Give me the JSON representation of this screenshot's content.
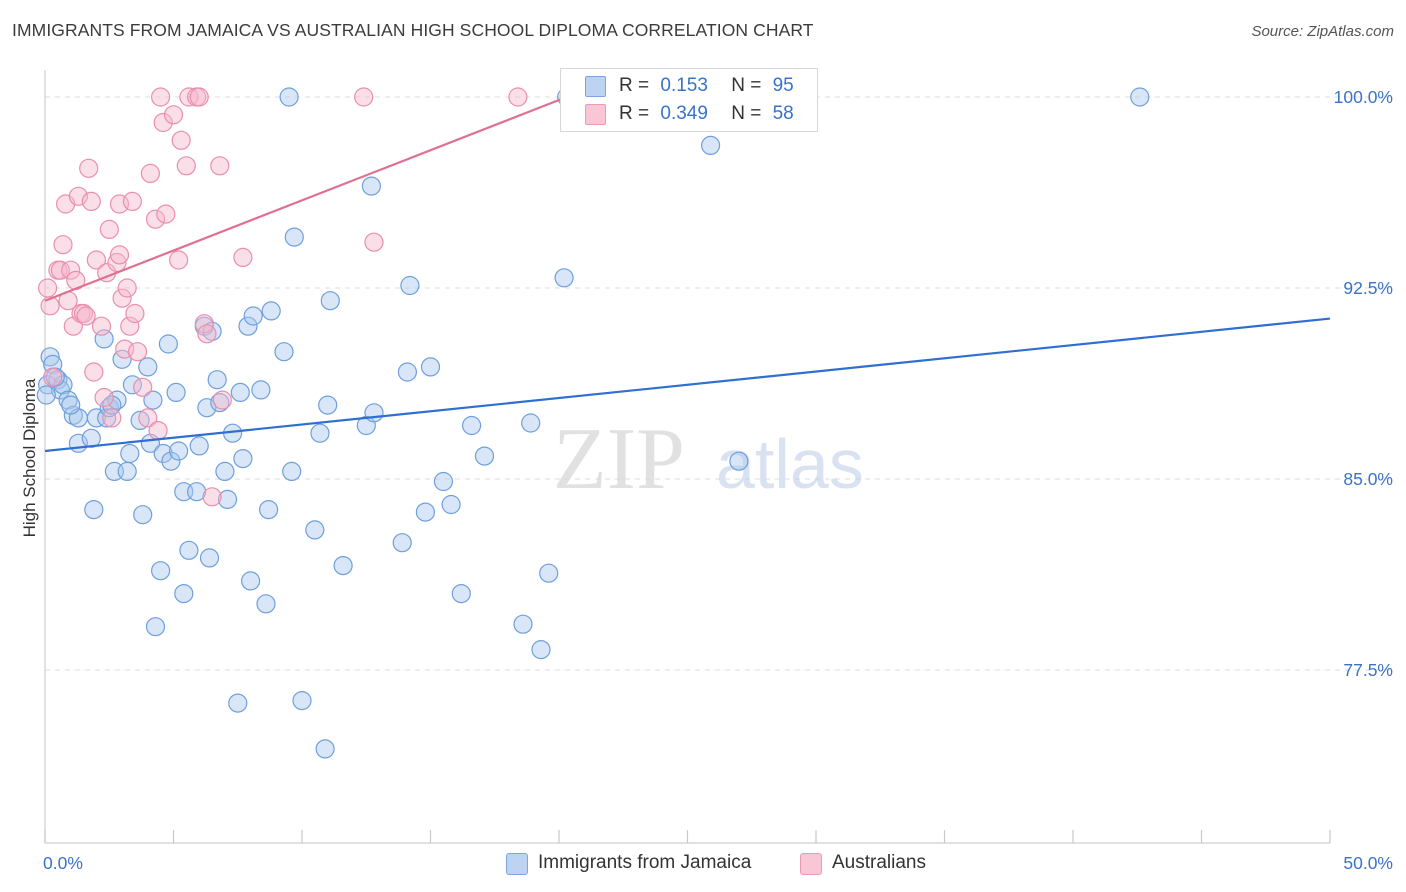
{
  "title": "IMMIGRANTS FROM JAMAICA VS AUSTRALIAN HIGH SCHOOL DIPLOMA CORRELATION CHART",
  "source": "Source: ZipAtlas.com",
  "watermark": {
    "zip": "ZIP",
    "atlas": "atlas"
  },
  "legend": {
    "rows": [
      {
        "r_label": "R =",
        "r_value": "0.153",
        "n_label": "N =",
        "n_value": "95"
      },
      {
        "r_label": "R =",
        "r_value": "0.349",
        "n_label": "N =",
        "n_value": "58"
      }
    ]
  },
  "colors": {
    "blue_fill": "#a9c7ee",
    "blue_stroke": "#6f9fdc",
    "blue_line": "#2f6fd1",
    "pink_fill": "#f7b8cb",
    "pink_stroke": "#ea8fab",
    "pink_line": "#e0708f",
    "tick_label": "#3a72c8"
  },
  "chart_data": {
    "type": "scatter",
    "title": "IMMIGRANTS FROM JAMAICA VS AUSTRALIAN HIGH SCHOOL DIPLOMA CORRELATION CHART",
    "xlabel": "",
    "ylabel": "High School Diploma",
    "xlim": [
      0,
      50
    ],
    "ylim": [
      70.5,
      101.5
    ],
    "x_tick_labels": [
      "0.0%",
      "50.0%"
    ],
    "y_ticks": [
      77.5,
      85.0,
      92.5,
      100.0
    ],
    "y_tick_labels": [
      "77.5%",
      "85.0%",
      "92.5%",
      "100.0%"
    ],
    "grid": "horizontal dashed",
    "legend_placement": "top-center and bottom",
    "series": [
      {
        "name": "Immigrants from Jamaica",
        "color": "#a9c7ee",
        "r": 0.153,
        "n": 95,
        "trend": [
          [
            0,
            86.1
          ],
          [
            50,
            91.3
          ]
        ],
        "points": [
          [
            0.1,
            88.7
          ],
          [
            0.2,
            89.8
          ],
          [
            0.3,
            89.5
          ],
          [
            0.5,
            88.9
          ],
          [
            0.6,
            88.5
          ],
          [
            0.7,
            88.7
          ],
          [
            0.9,
            88.1
          ],
          [
            1.1,
            87.5
          ],
          [
            1.3,
            87.4
          ],
          [
            1.3,
            86.4
          ],
          [
            1.8,
            86.6
          ],
          [
            1.9,
            83.8
          ],
          [
            2.0,
            87.4
          ],
          [
            2.3,
            90.5
          ],
          [
            2.4,
            87.4
          ],
          [
            2.5,
            87.8
          ],
          [
            2.7,
            85.3
          ],
          [
            2.8,
            88.1
          ],
          [
            3.0,
            89.7
          ],
          [
            3.2,
            85.3
          ],
          [
            3.3,
            86.0
          ],
          [
            3.4,
            88.7
          ],
          [
            3.7,
            87.3
          ],
          [
            3.8,
            83.6
          ],
          [
            4.0,
            89.4
          ],
          [
            4.1,
            86.4
          ],
          [
            4.2,
            88.1
          ],
          [
            4.3,
            79.2
          ],
          [
            4.5,
            81.4
          ],
          [
            4.6,
            86.0
          ],
          [
            4.8,
            90.3
          ],
          [
            4.9,
            85.7
          ],
          [
            5.1,
            88.4
          ],
          [
            5.2,
            86.1
          ],
          [
            5.4,
            84.5
          ],
          [
            5.4,
            80.5
          ],
          [
            5.6,
            82.2
          ],
          [
            5.9,
            84.5
          ],
          [
            6.0,
            86.3
          ],
          [
            6.2,
            91.0
          ],
          [
            6.3,
            87.8
          ],
          [
            6.4,
            81.9
          ],
          [
            6.5,
            90.8
          ],
          [
            6.7,
            88.9
          ],
          [
            6.8,
            88.0
          ],
          [
            7.0,
            85.3
          ],
          [
            7.1,
            84.2
          ],
          [
            7.3,
            86.8
          ],
          [
            7.5,
            76.2
          ],
          [
            7.6,
            88.4
          ],
          [
            7.7,
            85.8
          ],
          [
            7.9,
            91.0
          ],
          [
            8.0,
            81.0
          ],
          [
            8.1,
            91.4
          ],
          [
            8.4,
            88.5
          ],
          [
            8.6,
            80.1
          ],
          [
            8.7,
            83.8
          ],
          [
            8.8,
            91.6
          ],
          [
            9.3,
            90.0
          ],
          [
            9.5,
            100.0
          ],
          [
            9.6,
            85.3
          ],
          [
            9.7,
            94.5
          ],
          [
            10.0,
            76.3
          ],
          [
            10.5,
            83.0
          ],
          [
            10.7,
            86.8
          ],
          [
            10.9,
            74.4
          ],
          [
            11.0,
            87.9
          ],
          [
            11.1,
            92.0
          ],
          [
            11.6,
            81.6
          ],
          [
            12.5,
            87.1
          ],
          [
            12.7,
            96.5
          ],
          [
            12.8,
            87.6
          ],
          [
            13.9,
            82.5
          ],
          [
            14.1,
            89.2
          ],
          [
            14.2,
            92.6
          ],
          [
            14.8,
            83.7
          ],
          [
            15.0,
            89.4
          ],
          [
            15.5,
            84.9
          ],
          [
            15.8,
            84.0
          ],
          [
            16.2,
            80.5
          ],
          [
            16.6,
            87.1
          ],
          [
            17.1,
            85.9
          ],
          [
            18.6,
            79.3
          ],
          [
            18.9,
            87.2
          ],
          [
            19.3,
            78.3
          ],
          [
            19.6,
            81.3
          ],
          [
            20.2,
            92.9
          ],
          [
            25.9,
            98.1
          ],
          [
            27.0,
            85.7
          ],
          [
            42.6,
            100.0
          ],
          [
            0.05,
            88.3
          ],
          [
            0.4,
            89.0
          ],
          [
            1.0,
            87.9
          ],
          [
            2.6,
            87.9
          ],
          [
            20.3,
            100.0
          ]
        ]
      },
      {
        "name": "Australians",
        "color": "#f7b8cb",
        "r": 0.349,
        "n": 58,
        "trend": [
          [
            0,
            92.0
          ],
          [
            20.3,
            100.0
          ]
        ],
        "points": [
          [
            0.1,
            92.5
          ],
          [
            0.2,
            91.8
          ],
          [
            0.3,
            89.0
          ],
          [
            0.5,
            93.2
          ],
          [
            0.6,
            93.2
          ],
          [
            0.7,
            94.2
          ],
          [
            0.8,
            95.8
          ],
          [
            0.9,
            92.0
          ],
          [
            1.0,
            93.2
          ],
          [
            1.1,
            91.0
          ],
          [
            1.2,
            92.8
          ],
          [
            1.3,
            96.1
          ],
          [
            1.4,
            91.5
          ],
          [
            1.5,
            91.5
          ],
          [
            1.6,
            91.4
          ],
          [
            1.7,
            97.2
          ],
          [
            1.8,
            95.9
          ],
          [
            1.9,
            89.2
          ],
          [
            2.0,
            93.6
          ],
          [
            2.2,
            91.0
          ],
          [
            2.3,
            88.2
          ],
          [
            2.4,
            93.1
          ],
          [
            2.5,
            94.8
          ],
          [
            2.6,
            87.4
          ],
          [
            2.8,
            93.5
          ],
          [
            2.9,
            93.8
          ],
          [
            2.9,
            95.8
          ],
          [
            3.0,
            92.1
          ],
          [
            3.1,
            90.1
          ],
          [
            3.2,
            92.5
          ],
          [
            3.3,
            91.0
          ],
          [
            3.4,
            95.9
          ],
          [
            3.5,
            91.5
          ],
          [
            3.6,
            90.0
          ],
          [
            3.8,
            88.6
          ],
          [
            4.0,
            87.4
          ],
          [
            4.1,
            97.0
          ],
          [
            4.3,
            95.2
          ],
          [
            4.4,
            86.9
          ],
          [
            4.5,
            100.0
          ],
          [
            4.6,
            99.0
          ],
          [
            4.7,
            95.4
          ],
          [
            5.0,
            99.3
          ],
          [
            5.2,
            93.6
          ],
          [
            5.3,
            98.3
          ],
          [
            5.5,
            97.3
          ],
          [
            5.6,
            100.0
          ],
          [
            5.9,
            100.0
          ],
          [
            6.0,
            100.0
          ],
          [
            6.2,
            91.1
          ],
          [
            6.3,
            90.7
          ],
          [
            6.5,
            84.3
          ],
          [
            6.8,
            97.3
          ],
          [
            6.9,
            88.1
          ],
          [
            7.7,
            93.7
          ],
          [
            12.4,
            100.0
          ],
          [
            12.8,
            94.3
          ],
          [
            18.4,
            100.0
          ]
        ]
      }
    ]
  }
}
